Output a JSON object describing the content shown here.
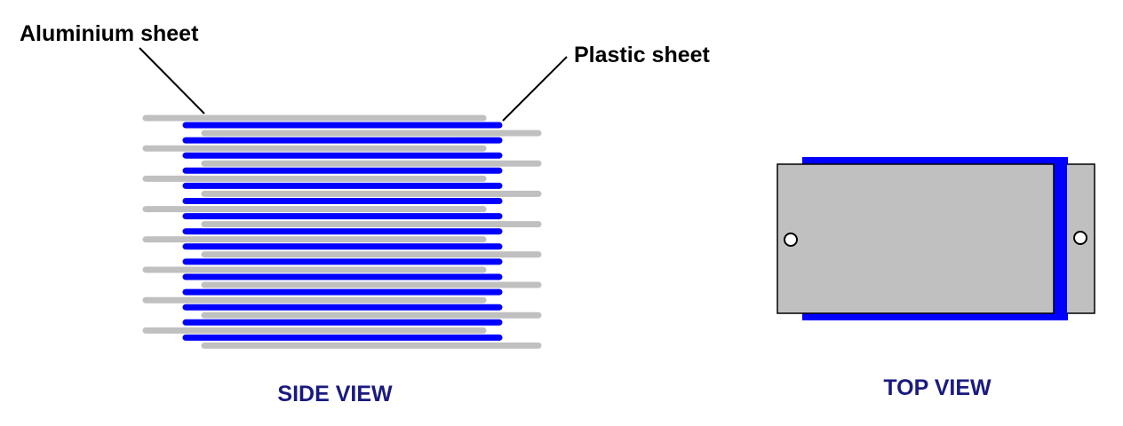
{
  "labels": {
    "aluminium": "Aluminium sheet",
    "plastic": "Plastic sheet"
  },
  "captions": {
    "side_view": "SIDE VIEW",
    "top_view": "TOP VIEW"
  },
  "colors": {
    "aluminium": "#c0c0c0",
    "plastic": "#0000ff",
    "caption": "#1a1a80",
    "outline": "#000000",
    "background": "#ffffff"
  },
  "side_view": {
    "left_aluminium_sheets": 8,
    "right_aluminium_sheets": 8,
    "plastic_sheets": 15
  },
  "top_view": {
    "mounting_holes": 2
  }
}
